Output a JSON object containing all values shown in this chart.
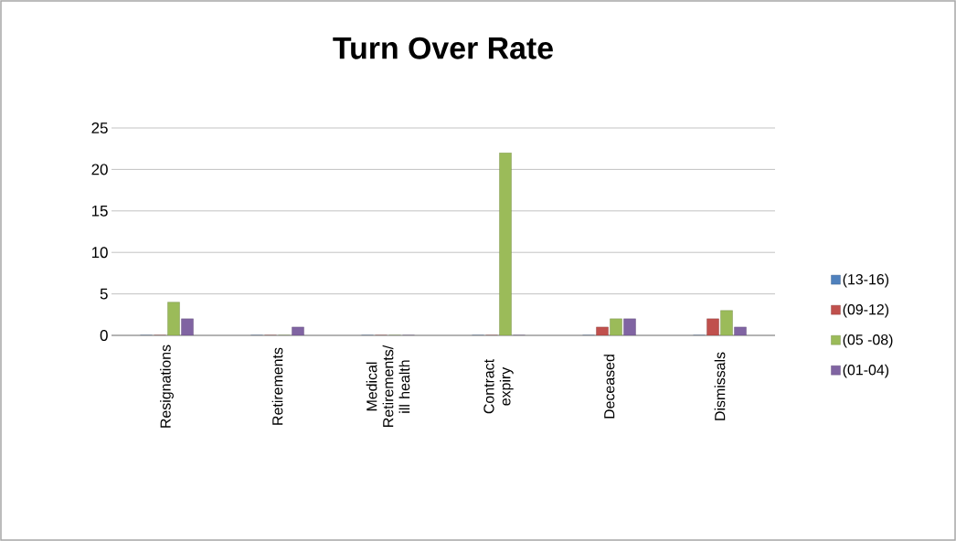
{
  "chart_data": {
    "type": "bar",
    "title": "Turn Over Rate",
    "categories": [
      "Resignations",
      "Retirements",
      "Medical Retirements/ ill health",
      "Contract expiry",
      "Deceased",
      "Dismissals"
    ],
    "series": [
      {
        "name": "(13-16)",
        "color": "#4f81bd",
        "values": [
          0,
          0,
          0,
          0,
          0,
          0
        ]
      },
      {
        "name": "(09-12)",
        "color": "#c0504d",
        "values": [
          0,
          0,
          0,
          0,
          1,
          2
        ]
      },
      {
        "name": "(05 -08)",
        "color": "#9bbb59",
        "values": [
          4,
          0,
          0,
          22,
          2,
          3
        ]
      },
      {
        "name": "(01-04)",
        "color": "#8064a2",
        "values": [
          2,
          1,
          0,
          0,
          2,
          1
        ]
      }
    ],
    "ylim": [
      0,
      25
    ],
    "yticks": [
      0,
      5,
      10,
      15,
      20,
      25
    ],
    "grid": "y",
    "legend": "right"
  }
}
